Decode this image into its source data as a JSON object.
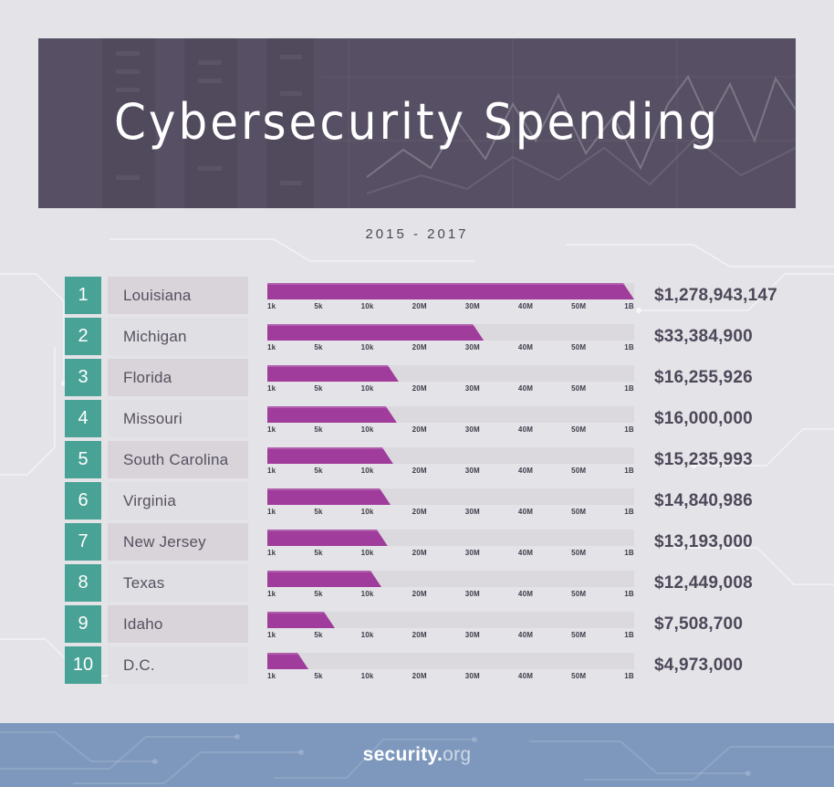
{
  "header": {
    "title": "Cybersecurity Spending",
    "subtitle": "2015 - 2017"
  },
  "chart_data": {
    "type": "bar",
    "orientation": "horizontal",
    "title": "Cybersecurity Spending",
    "subtitle": "2015 - 2017",
    "axis_ticks": [
      "1k",
      "5k",
      "10k",
      "20M",
      "30M",
      "40M",
      "50M",
      "1B"
    ],
    "legend": "none",
    "grid": false,
    "rows": [
      {
        "rank": "1",
        "label": "Louisiana",
        "value": 1278943147,
        "value_text": "$1,278,943,147",
        "bar_pct": 100
      },
      {
        "rank": "2",
        "label": "Michigan",
        "value": 33384900,
        "value_text": "$33,384,900",
        "bar_pct": 59
      },
      {
        "rank": "3",
        "label": "Florida",
        "value": 16255926,
        "value_text": "$16,255,926",
        "bar_pct": 35.8
      },
      {
        "rank": "4",
        "label": "Missouri",
        "value": 16000000,
        "value_text": "$16,000,000",
        "bar_pct": 35.3
      },
      {
        "rank": "5",
        "label": "South Carolina",
        "value": 15235993,
        "value_text": "$15,235,993",
        "bar_pct": 34.3
      },
      {
        "rank": "6",
        "label": "Virginia",
        "value": 14840986,
        "value_text": "$14,840,986",
        "bar_pct": 33.6
      },
      {
        "rank": "7",
        "label": "New Jersey",
        "value": 13193000,
        "value_text": "$13,193,000",
        "bar_pct": 32.8
      },
      {
        "rank": "8",
        "label": "Texas",
        "value": 12449008,
        "value_text": "$12,449,008",
        "bar_pct": 31.1
      },
      {
        "rank": "9",
        "label": "Idaho",
        "value": 7508700,
        "value_text": "$7,508,700",
        "bar_pct": 18.4
      },
      {
        "rank": "10",
        "label": "D.C.",
        "value": 4973000,
        "value_text": "$4,973,000",
        "bar_pct": 11.2
      }
    ]
  },
  "footer": {
    "brand_bold": "security.",
    "brand_light": "org"
  },
  "colors": {
    "bar": "#a03c9c",
    "bar_track": "#dbd9dd",
    "rank_badge": "#49a296",
    "header_background": "#575064",
    "footer_background": "#7E98BD",
    "page_background": "#e4e3e7"
  }
}
